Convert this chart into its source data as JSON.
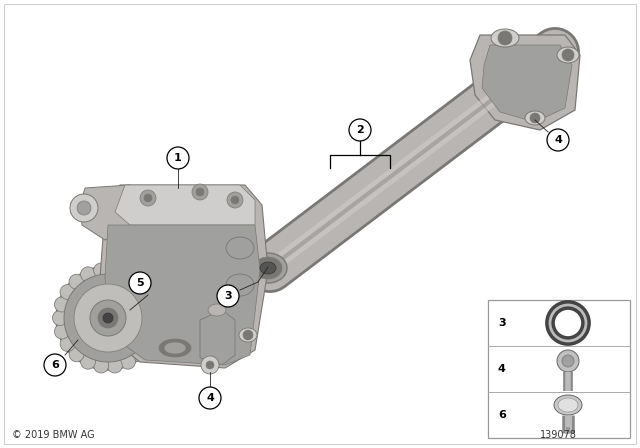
{
  "background_color": "#ffffff",
  "copyright_text": "© 2019 BMW AG",
  "part_number": "139078",
  "fig_width": 6.4,
  "fig_height": 4.48,
  "dpi": 100,
  "pump_color": "#b8b5b2",
  "pump_dark": "#7a7875",
  "pump_mid": "#a0a09e",
  "pump_light": "#d0cecc",
  "tube_color": "#b8b5b2",
  "gear_color": "#c0bebb",
  "callout_bg": "#ffffff",
  "callout_edge": "#000000",
  "text_color": "#000000",
  "legend_border": "#999999",
  "legend_bg": "#f8f8f8"
}
